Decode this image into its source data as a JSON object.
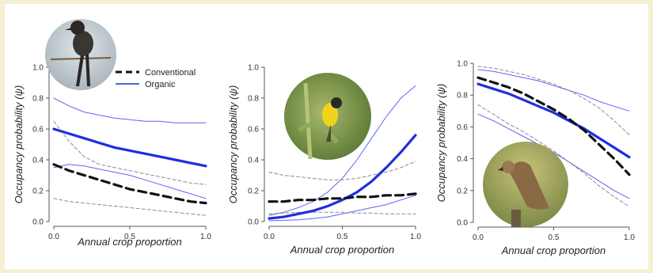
{
  "figure": {
    "background": "#ffffff",
    "page_background": "#f5f0d2"
  },
  "legend": {
    "entries": [
      {
        "label": "Conventional",
        "style": "dashed-black"
      },
      {
        "label": "Organic",
        "style": "solid-blue"
      }
    ],
    "placement": "top-left of first panel"
  },
  "colors": {
    "organic": "#1f2de0",
    "conventional": "#111111",
    "ci_organic": "#5a66f0",
    "ci_conventional": "#8a8a8a"
  },
  "photos": [
    {
      "name": "perched-flycatcher-photo",
      "panel": 1
    },
    {
      "name": "yellow-bird-photo",
      "panel": 2
    },
    {
      "name": "hawk-photo",
      "panel": 3
    }
  ],
  "chart_data": [
    {
      "type": "line",
      "xlabel": "Annual crop proportion",
      "ylabel": "Occupancy probability (ψ)",
      "xlim": [
        0,
        1
      ],
      "ylim": [
        0,
        1
      ],
      "xticks": [
        "0.0",
        "0.5",
        "1.0"
      ],
      "yticks": [
        "0.0",
        "0.2",
        "0.4",
        "0.6",
        "0.8",
        "1.0"
      ],
      "x": [
        0,
        0.1,
        0.2,
        0.3,
        0.4,
        0.5,
        0.6,
        0.7,
        0.8,
        0.9,
        1.0
      ],
      "series": [
        {
          "name": "Organic",
          "role": "mean",
          "values": [
            0.6,
            0.57,
            0.54,
            0.51,
            0.48,
            0.46,
            0.44,
            0.42,
            0.4,
            0.38,
            0.36
          ]
        },
        {
          "name": "Organic",
          "role": "upper",
          "values": [
            0.8,
            0.75,
            0.71,
            0.69,
            0.67,
            0.66,
            0.65,
            0.65,
            0.64,
            0.64,
            0.64
          ]
        },
        {
          "name": "Organic",
          "role": "lower",
          "values": [
            0.35,
            0.37,
            0.36,
            0.34,
            0.32,
            0.3,
            0.27,
            0.24,
            0.21,
            0.18,
            0.15
          ]
        },
        {
          "name": "Conventional",
          "role": "mean",
          "values": [
            0.37,
            0.33,
            0.3,
            0.27,
            0.24,
            0.21,
            0.19,
            0.17,
            0.15,
            0.13,
            0.12
          ]
        },
        {
          "name": "Conventional",
          "role": "upper",
          "values": [
            0.65,
            0.52,
            0.42,
            0.37,
            0.35,
            0.33,
            0.31,
            0.29,
            0.27,
            0.25,
            0.24
          ]
        },
        {
          "name": "Conventional",
          "role": "lower",
          "values": [
            0.15,
            0.13,
            0.12,
            0.11,
            0.1,
            0.09,
            0.08,
            0.07,
            0.06,
            0.05,
            0.04
          ]
        }
      ]
    },
    {
      "type": "line",
      "xlabel": "Annual crop proportion",
      "ylabel": "Occupancy probability (ψ)",
      "xlim": [
        0,
        1
      ],
      "ylim": [
        0,
        1
      ],
      "xticks": [
        "0.0",
        "0.5",
        "1.0"
      ],
      "yticks": [
        "0.0",
        "0.2",
        "0.4",
        "0.6",
        "0.8",
        "1.0"
      ],
      "x": [
        0,
        0.1,
        0.2,
        0.3,
        0.4,
        0.5,
        0.6,
        0.7,
        0.8,
        0.9,
        1.0
      ],
      "series": [
        {
          "name": "Organic",
          "role": "mean",
          "values": [
            0.02,
            0.03,
            0.05,
            0.07,
            0.1,
            0.14,
            0.19,
            0.26,
            0.35,
            0.45,
            0.56
          ]
        },
        {
          "name": "Organic",
          "role": "upper",
          "values": [
            0.04,
            0.06,
            0.09,
            0.13,
            0.19,
            0.28,
            0.4,
            0.54,
            0.68,
            0.8,
            0.88
          ]
        },
        {
          "name": "Organic",
          "role": "lower",
          "values": [
            0.005,
            0.008,
            0.012,
            0.02,
            0.03,
            0.05,
            0.07,
            0.09,
            0.11,
            0.14,
            0.17
          ]
        },
        {
          "name": "Conventional",
          "role": "mean",
          "values": [
            0.13,
            0.13,
            0.14,
            0.14,
            0.15,
            0.15,
            0.16,
            0.16,
            0.17,
            0.17,
            0.18
          ]
        },
        {
          "name": "Conventional",
          "role": "upper",
          "values": [
            0.32,
            0.3,
            0.29,
            0.28,
            0.27,
            0.27,
            0.28,
            0.3,
            0.32,
            0.35,
            0.39
          ]
        },
        {
          "name": "Conventional",
          "role": "lower",
          "values": [
            0.05,
            0.055,
            0.06,
            0.06,
            0.06,
            0.06,
            0.055,
            0.055,
            0.05,
            0.05,
            0.05
          ]
        }
      ]
    },
    {
      "type": "line",
      "xlabel": "Annual crop proportion",
      "ylabel": "Occupancy probability (ψ)",
      "xlim": [
        0,
        1
      ],
      "ylim": [
        0,
        1
      ],
      "xticks": [
        "0.0",
        "0.5",
        "1.0"
      ],
      "yticks": [
        "0.0",
        "0.2",
        "0.4",
        "0.6",
        "0.8",
        "1.0"
      ],
      "x": [
        0,
        0.1,
        0.2,
        0.3,
        0.4,
        0.5,
        0.6,
        0.7,
        0.8,
        0.9,
        1.0
      ],
      "series": [
        {
          "name": "Organic",
          "role": "mean",
          "values": [
            0.87,
            0.84,
            0.81,
            0.77,
            0.73,
            0.69,
            0.64,
            0.59,
            0.53,
            0.47,
            0.41
          ]
        },
        {
          "name": "Organic",
          "role": "upper",
          "values": [
            0.96,
            0.95,
            0.93,
            0.91,
            0.89,
            0.86,
            0.83,
            0.8,
            0.76,
            0.73,
            0.7
          ]
        },
        {
          "name": "Organic",
          "role": "lower",
          "values": [
            0.68,
            0.64,
            0.59,
            0.54,
            0.49,
            0.44,
            0.38,
            0.32,
            0.26,
            0.2,
            0.15
          ]
        },
        {
          "name": "Conventional",
          "role": "mean",
          "values": [
            0.91,
            0.88,
            0.85,
            0.81,
            0.76,
            0.71,
            0.65,
            0.58,
            0.49,
            0.4,
            0.3
          ]
        },
        {
          "name": "Conventional",
          "role": "upper",
          "values": [
            0.98,
            0.97,
            0.95,
            0.93,
            0.9,
            0.87,
            0.83,
            0.78,
            0.72,
            0.64,
            0.55
          ]
        },
        {
          "name": "Conventional",
          "role": "lower",
          "values": [
            0.74,
            0.68,
            0.62,
            0.57,
            0.51,
            0.45,
            0.38,
            0.31,
            0.23,
            0.16,
            0.1
          ]
        }
      ]
    }
  ]
}
